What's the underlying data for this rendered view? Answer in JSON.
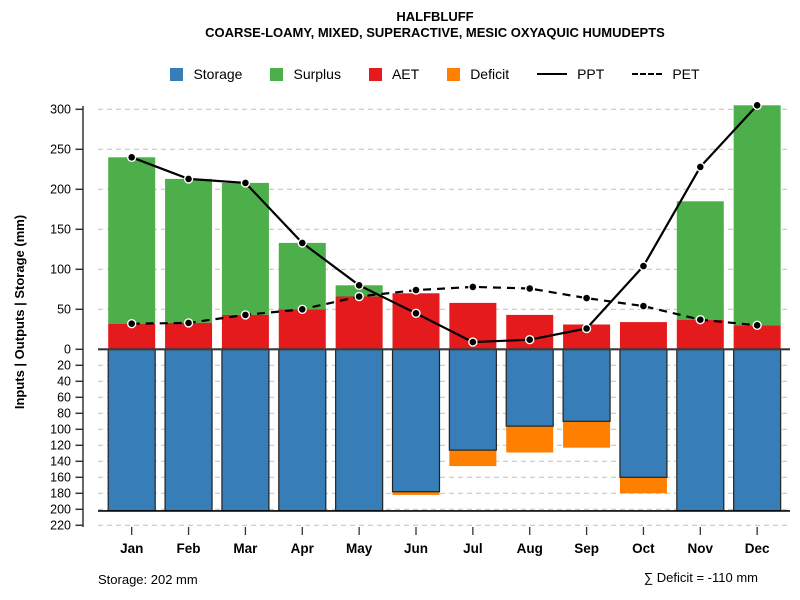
{
  "header": {
    "title": "HALFBLUFF",
    "subtitle": "COARSE-LOAMY, MIXED, SUPERACTIVE, MESIC OXYAQUIC HUMUDEPTS"
  },
  "chart_data": {
    "type": "bar",
    "title": "HALFBLUFF",
    "subtitle": "COARSE-LOAMY, MIXED, SUPERACTIVE, MESIC OXYAQUIC HUMUDEPTS",
    "categories": [
      "Jan",
      "Feb",
      "Mar",
      "Apr",
      "May",
      "Jun",
      "Jul",
      "Aug",
      "Sep",
      "Oct",
      "Nov",
      "Dec"
    ],
    "series": [
      {
        "name": "Storage",
        "type": "bar-down",
        "color": "#377EB8",
        "values": [
          202,
          202,
          202,
          202,
          202,
          178,
          126,
          96,
          90,
          160,
          202,
          202
        ]
      },
      {
        "name": "Surplus",
        "type": "bar-up-stacked",
        "color": "#4DAF4A",
        "values": [
          208,
          180,
          165,
          83,
          14,
          0,
          0,
          0,
          0,
          0,
          148,
          275
        ]
      },
      {
        "name": "AET",
        "type": "bar-up",
        "color": "#E41A1C",
        "values": [
          32,
          33,
          43,
          50,
          66,
          70,
          58,
          43,
          31,
          34,
          37,
          30
        ]
      },
      {
        "name": "Deficit",
        "type": "bar-down-stacked",
        "color": "#FF7F00",
        "values": [
          0,
          0,
          0,
          0,
          0,
          4,
          20,
          33,
          33,
          20,
          0,
          0
        ]
      },
      {
        "name": "PPT",
        "type": "line-solid",
        "color": "#000000",
        "values": [
          240,
          213,
          208,
          133,
          80,
          45,
          9,
          12,
          26,
          104,
          228,
          305
        ]
      },
      {
        "name": "PET",
        "type": "line-dashed",
        "color": "#000000",
        "values": [
          32,
          33,
          43,
          50,
          66,
          74,
          78,
          76,
          64,
          54,
          37,
          30
        ]
      }
    ],
    "ylabel": "Inputs | Outputs | Storage   (mm)",
    "xlabel": "",
    "y_ticks_top": [
      0,
      50,
      100,
      150,
      200,
      250,
      300
    ],
    "y_ticks_bottom": [
      20,
      40,
      60,
      80,
      100,
      120,
      140,
      160,
      180,
      200,
      220
    ],
    "y_axis": {
      "top_range": [
        0,
        300
      ],
      "bottom_range": [
        0,
        220
      ],
      "storage_capacity": 202
    },
    "grid": true,
    "legend_position": "top",
    "annotations": {
      "left": "Storage: 202 mm",
      "right": "∑ Deficit = -110 mm"
    },
    "colors": {
      "storage": "#377EB8",
      "surplus": "#4DAF4A",
      "aet": "#E41A1C",
      "deficit": "#FF7F00",
      "line": "#000000",
      "grid": "#C8C8C8"
    }
  }
}
